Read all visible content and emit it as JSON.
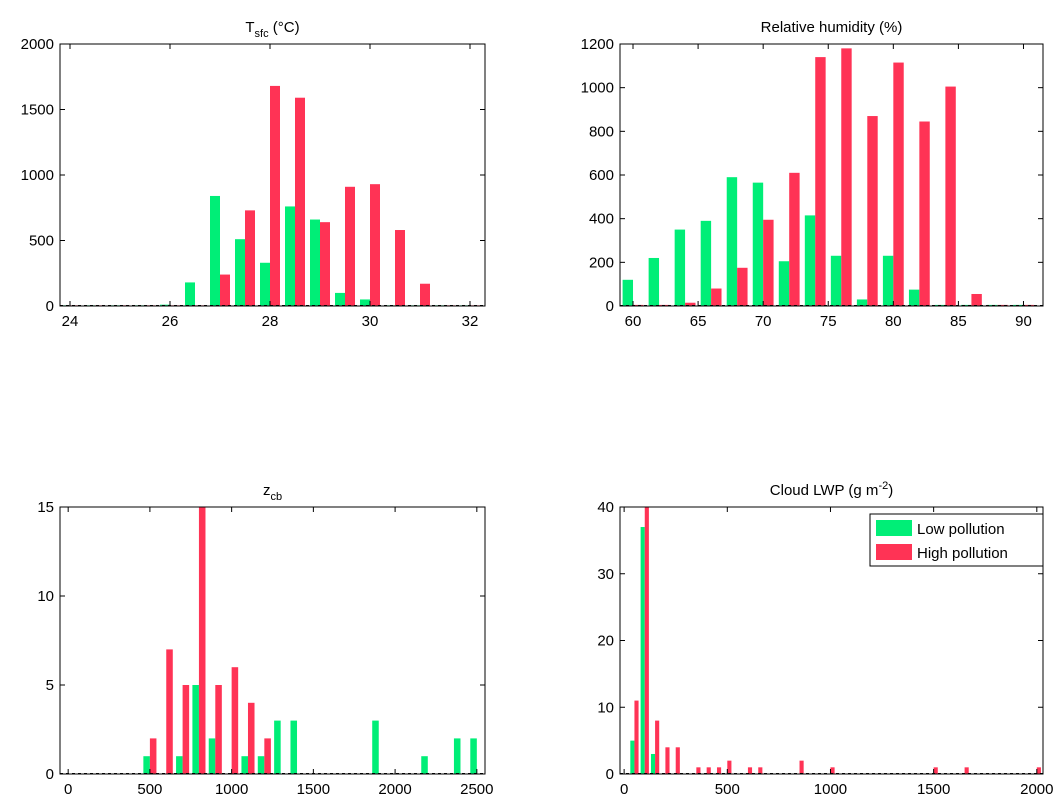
{
  "legend": {
    "colors": {
      "low": "#00ee77",
      "high": "#ff3355"
    },
    "low_label": "Low pollution",
    "high_label": "High pollution"
  },
  "chart_data": [
    {
      "type": "bar",
      "title": "T",
      "title_sub": "sfc",
      "title_suffix": " (°C)",
      "xlim": [
        23.8,
        32.3
      ],
      "ylim": [
        0,
        2000
      ],
      "xticks": [
        24,
        26,
        28,
        30,
        32
      ],
      "yticks": [
        0,
        500,
        1000,
        1500,
        2000
      ],
      "bin_width": 0.5,
      "series": [
        {
          "name": "Low pollution",
          "x": [
            24,
            24.5,
            25,
            25.5,
            26,
            26.5,
            27,
            27.5,
            28,
            28.5,
            29,
            29.5,
            30,
            30.5,
            31,
            31.5,
            32
          ],
          "values": [
            5,
            5,
            5,
            5,
            10,
            180,
            840,
            510,
            330,
            760,
            660,
            100,
            50,
            5,
            5,
            5,
            5
          ]
        },
        {
          "name": "High pollution",
          "x": [
            24,
            24.5,
            25,
            25.5,
            26,
            26.5,
            27,
            27.5,
            28,
            28.5,
            29,
            29.5,
            30,
            30.5,
            31,
            31.5,
            32
          ],
          "values": [
            5,
            5,
            5,
            5,
            5,
            5,
            240,
            730,
            1680,
            1590,
            640,
            910,
            930,
            580,
            170,
            5,
            5
          ]
        }
      ]
    },
    {
      "type": "bar",
      "title": "Relative humidity (%)",
      "xlim": [
        59,
        91.5
      ],
      "ylim": [
        0,
        1200
      ],
      "xticks": [
        60,
        65,
        70,
        75,
        80,
        85,
        90
      ],
      "yticks": [
        0,
        200,
        400,
        600,
        800,
        1000,
        1200
      ],
      "bin_width": 2,
      "series": [
        {
          "name": "Low pollution",
          "x": [
            60,
            62,
            64,
            66,
            68,
            70,
            72,
            74,
            76,
            78,
            80,
            82,
            84,
            86,
            88,
            90
          ],
          "values": [
            120,
            220,
            350,
            390,
            590,
            565,
            205,
            415,
            230,
            30,
            230,
            75,
            5,
            5,
            5,
            5
          ]
        },
        {
          "name": "High pollution",
          "x": [
            60,
            62,
            64,
            66,
            68,
            70,
            72,
            74,
            76,
            78,
            80,
            82,
            84,
            86,
            88,
            90
          ],
          "values": [
            5,
            5,
            15,
            80,
            175,
            395,
            610,
            1140,
            1180,
            870,
            1115,
            845,
            1005,
            55,
            5,
            5
          ]
        }
      ]
    },
    {
      "type": "bar",
      "title": "z",
      "title_sub": "cb",
      "xlim": [
        -50,
        2550
      ],
      "ylim": [
        0,
        15
      ],
      "xticks": [
        0,
        500,
        1000,
        1500,
        2000,
        2500
      ],
      "yticks": [
        0,
        5,
        10,
        15
      ],
      "bin_width": 100,
      "series": [
        {
          "name": "Low pollution",
          "x": [
            0,
            100,
            200,
            300,
            400,
            500,
            600,
            700,
            800,
            900,
            1000,
            1100,
            1200,
            1300,
            1400,
            1500,
            1600,
            1700,
            1800,
            1900,
            2000,
            2100,
            2200,
            2300,
            2400,
            2500
          ],
          "values": [
            0,
            0,
            0,
            0,
            0,
            1,
            0,
            1,
            5,
            2,
            0,
            1,
            1,
            3,
            3,
            0,
            0,
            0,
            0,
            3,
            0,
            0,
            1,
            0,
            2,
            2
          ]
        },
        {
          "name": "High pollution",
          "x": [
            0,
            100,
            200,
            300,
            400,
            500,
            600,
            700,
            800,
            900,
            1000,
            1100,
            1200,
            1300,
            1400,
            1500,
            1600,
            1700,
            1800,
            1900,
            2000,
            2100,
            2200,
            2300,
            2400,
            2500
          ],
          "values": [
            0,
            0,
            0,
            0,
            0,
            2,
            7,
            5,
            15,
            5,
            6,
            4,
            2,
            0,
            0,
            0,
            0,
            0,
            0,
            0,
            0,
            0,
            0,
            0,
            0,
            0
          ]
        }
      ]
    },
    {
      "type": "bar",
      "title": "Cloud LWP (g m",
      "title_sup": "-2",
      "title_suffix": ")",
      "xlim": [
        -20,
        2030
      ],
      "ylim": [
        0,
        40
      ],
      "xticks": [
        0,
        500,
        1000,
        1500,
        2000
      ],
      "yticks": [
        0,
        10,
        20,
        30,
        40
      ],
      "bin_width": 50,
      "legend": true,
      "series": [
        {
          "name": "Low pollution",
          "x": [
            50,
            100,
            150,
            200,
            250,
            300,
            350,
            400,
            450,
            500,
            550,
            600,
            650,
            700,
            750,
            800,
            850,
            900,
            950,
            1000,
            1050,
            1100,
            1150,
            1200,
            1250,
            1300,
            1350,
            1400,
            1450,
            1500,
            1550,
            1600,
            1650,
            1700,
            1750,
            1800,
            1850,
            1900,
            1950,
            2000
          ],
          "values": [
            5,
            37,
            3,
            0,
            0,
            0,
            0,
            0,
            0,
            0,
            0,
            0,
            0,
            0,
            0,
            0,
            0,
            0,
            0,
            0,
            0,
            0,
            0,
            0,
            0,
            0,
            0,
            0,
            0,
            0,
            0,
            0,
            0,
            0,
            0,
            0,
            0,
            0,
            0,
            0
          ]
        },
        {
          "name": "High pollution",
          "x": [
            50,
            100,
            150,
            200,
            250,
            300,
            350,
            400,
            450,
            500,
            550,
            600,
            650,
            700,
            750,
            800,
            850,
            900,
            950,
            1000,
            1050,
            1100,
            1150,
            1200,
            1250,
            1300,
            1350,
            1400,
            1450,
            1500,
            1550,
            1600,
            1650,
            1700,
            1750,
            1800,
            1850,
            1900,
            1950,
            2000
          ],
          "values": [
            11,
            40,
            8,
            4,
            4,
            0,
            1,
            1,
            1,
            2,
            0,
            1,
            1,
            0,
            0,
            0,
            2,
            0,
            0,
            1,
            0,
            0,
            0,
            0,
            0,
            0,
            0,
            0,
            0,
            1,
            0,
            0,
            1,
            0,
            0,
            0,
            0,
            0,
            0,
            1
          ]
        }
      ]
    }
  ]
}
